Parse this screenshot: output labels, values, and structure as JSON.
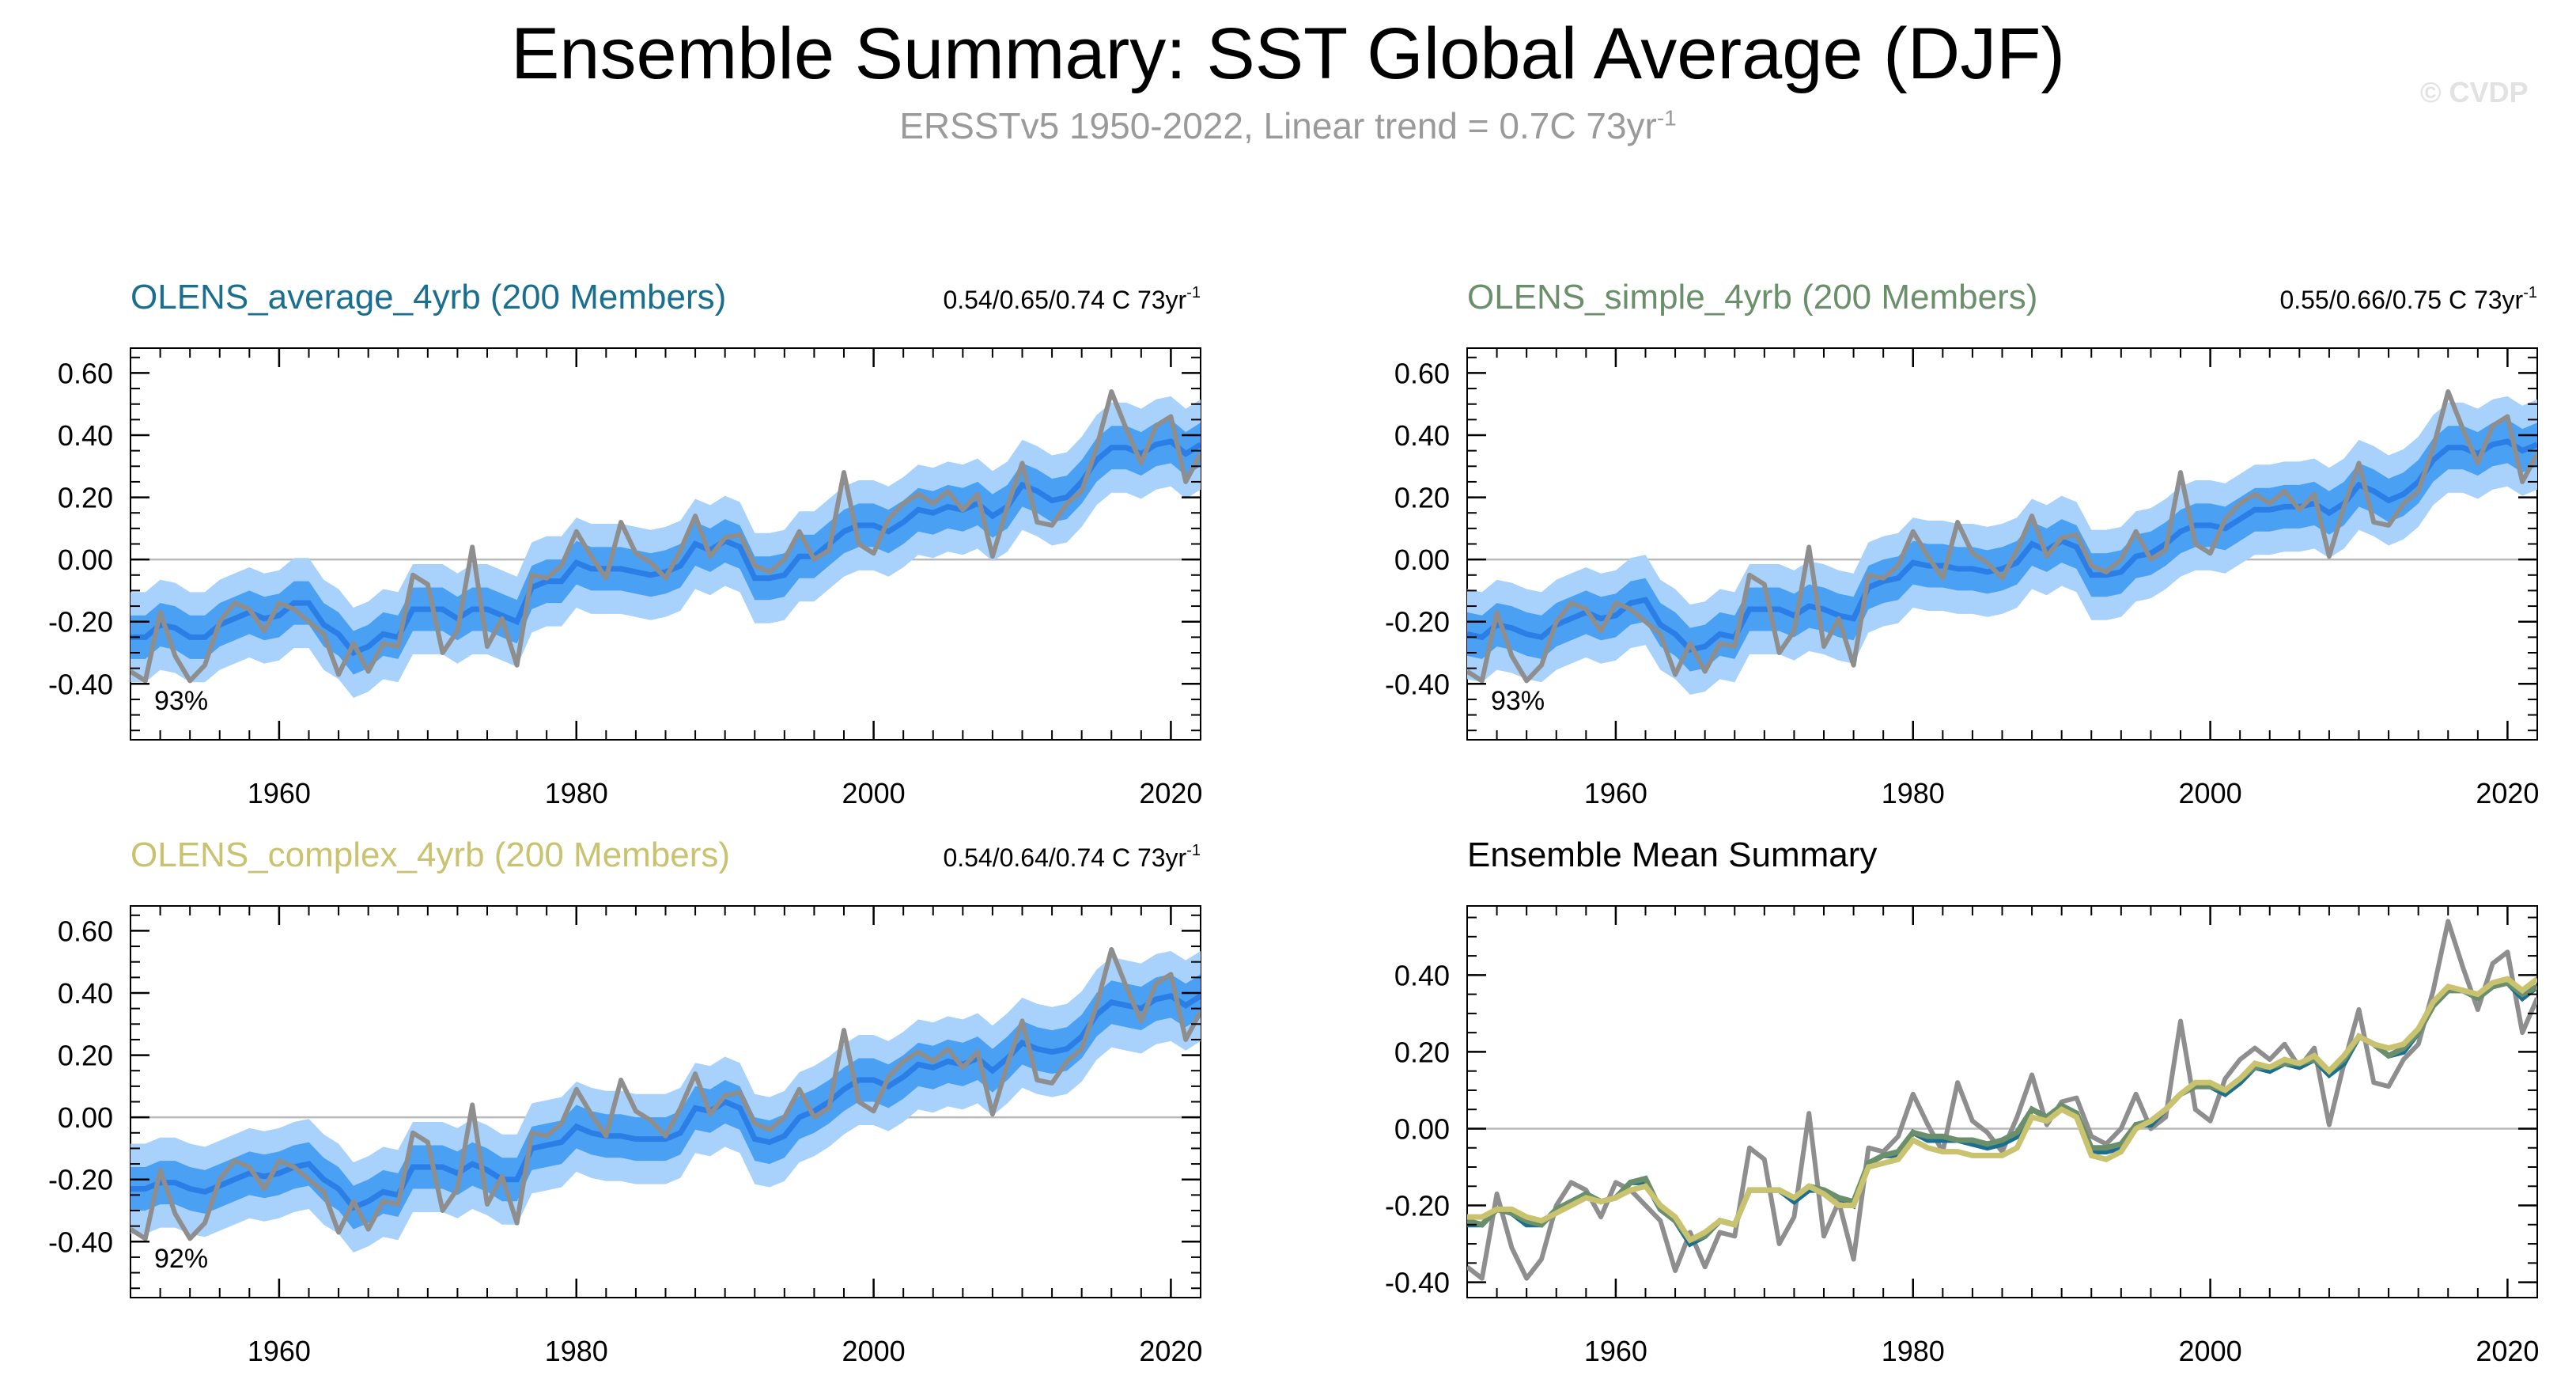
{
  "title": "Ensemble Summary: SST Global Average (DJF)",
  "subtitle": {
    "text": "ERSSTv5 1950-2022, Linear trend = 0.7C 73yr",
    "sup": "-1"
  },
  "watermark": "© CVDP",
  "colors": {
    "average": "#1a6e8f",
    "simple": "#6a8f6a",
    "complex": "#c9c36f",
    "outer_band": "#a8d2fb",
    "inner_band": "#4aa0f2",
    "ens_mean_line": "#2a7ee6",
    "obs": "#8e8e8e",
    "zero": "#b9b9b9"
  },
  "chart_data": [
    {
      "type": "area",
      "title": "OLENS_average_4yrb (200 Members)",
      "title_color": "#1a6e8f",
      "trend_text": "0.54/0.65/0.74 C 73yr",
      "trend_sup": "-1",
      "percent_label": "93%",
      "xlim": [
        1950,
        2022
      ],
      "ylim": [
        -0.58,
        0.68
      ],
      "xticks": [
        1960,
        1980,
        2000,
        2020
      ],
      "yticks": [
        -0.4,
        -0.2,
        0.0,
        0.2,
        0.4,
        0.6
      ],
      "ytick_labels": [
        "-0.40",
        "-0.20",
        "0.00",
        "0.20",
        "0.40",
        "0.60"
      ],
      "ens_offset": 0.0
    },
    {
      "type": "area",
      "title": "OLENS_simple_4yrb (200 Members)",
      "title_color": "#6a8f6a",
      "trend_text": "0.55/0.66/0.75 C 73yr",
      "trend_sup": "-1",
      "percent_label": "93%",
      "xlim": [
        1950,
        2022
      ],
      "ylim": [
        -0.58,
        0.68
      ],
      "xticks": [
        1960,
        1980,
        2000,
        2020
      ],
      "yticks": [
        -0.4,
        -0.2,
        0.0,
        0.2,
        0.4,
        0.6
      ],
      "ytick_labels": [
        "-0.40",
        "-0.20",
        "0.00",
        "0.20",
        "0.40",
        "0.60"
      ],
      "ens_offset": 0.005
    },
    {
      "type": "area",
      "title": "OLENS_complex_4yrb (200 Members)",
      "title_color": "#c9c36f",
      "trend_text": "0.54/0.64/0.74 C 73yr",
      "trend_sup": "-1",
      "percent_label": "92%",
      "xlim": [
        1950,
        2022
      ],
      "ylim": [
        -0.58,
        0.68
      ],
      "xticks": [
        1960,
        1980,
        2000,
        2020
      ],
      "yticks": [
        -0.4,
        -0.2,
        0.0,
        0.2,
        0.4,
        0.6
      ],
      "ytick_labels": [
        "-0.40",
        "-0.20",
        "0.00",
        "0.20",
        "0.40",
        "0.60"
      ],
      "ens_offset": 0.01
    },
    {
      "type": "line",
      "title": "Ensemble Mean Summary",
      "title_color": "#000000",
      "xlim": [
        1950,
        2022
      ],
      "ylim": [
        -0.44,
        0.58
      ],
      "xticks": [
        1960,
        1980,
        2000,
        2020
      ],
      "yticks": [
        -0.4,
        -0.2,
        0.0,
        0.2,
        0.4
      ],
      "ytick_labels": [
        "-0.40",
        "-0.20",
        "0.00",
        "0.20",
        "0.40"
      ]
    }
  ],
  "series_data": {
    "years": [
      1950,
      1951,
      1952,
      1953,
      1954,
      1955,
      1956,
      1957,
      1958,
      1959,
      1960,
      1961,
      1962,
      1963,
      1964,
      1965,
      1966,
      1967,
      1968,
      1969,
      1970,
      1971,
      1972,
      1973,
      1974,
      1975,
      1976,
      1977,
      1978,
      1979,
      1980,
      1981,
      1982,
      1983,
      1984,
      1985,
      1986,
      1987,
      1988,
      1989,
      1990,
      1991,
      1992,
      1993,
      1994,
      1995,
      1996,
      1997,
      1998,
      1999,
      2000,
      2001,
      2002,
      2003,
      2004,
      2005,
      2006,
      2007,
      2008,
      2009,
      2010,
      2011,
      2012,
      2013,
      2014,
      2015,
      2016,
      2017,
      2018,
      2019,
      2020,
      2021,
      2022
    ],
    "observed": [
      -0.36,
      -0.39,
      -0.17,
      -0.31,
      -0.39,
      -0.34,
      -0.2,
      -0.14,
      -0.16,
      -0.23,
      -0.14,
      -0.16,
      -0.2,
      -0.24,
      -0.37,
      -0.27,
      -0.36,
      -0.27,
      -0.28,
      -0.05,
      -0.08,
      -0.3,
      -0.23,
      0.04,
      -0.28,
      -0.19,
      -0.34,
      -0.05,
      -0.06,
      -0.02,
      0.09,
      0.01,
      -0.06,
      0.12,
      0.02,
      -0.01,
      -0.06,
      0.03,
      0.14,
      0.01,
      0.07,
      0.08,
      -0.02,
      -0.04,
      0.0,
      0.09,
      0.0,
      0.03,
      0.28,
      0.05,
      0.02,
      0.13,
      0.18,
      0.21,
      0.18,
      0.22,
      0.16,
      0.21,
      0.01,
      0.17,
      0.31,
      0.12,
      0.11,
      0.18,
      0.22,
      0.36,
      0.54,
      0.42,
      0.31,
      0.43,
      0.46,
      0.25,
      0.34
    ],
    "ens_average": [
      -0.25,
      -0.25,
      -0.21,
      -0.22,
      -0.25,
      -0.25,
      -0.21,
      -0.19,
      -0.17,
      -0.19,
      -0.18,
      -0.14,
      -0.14,
      -0.21,
      -0.24,
      -0.3,
      -0.28,
      -0.24,
      -0.25,
      -0.16,
      -0.16,
      -0.16,
      -0.19,
      -0.16,
      -0.16,
      -0.18,
      -0.2,
      -0.09,
      -0.07,
      -0.07,
      -0.01,
      -0.03,
      -0.03,
      -0.03,
      -0.04,
      -0.05,
      -0.04,
      -0.02,
      0.05,
      0.03,
      0.06,
      0.04,
      -0.06,
      -0.06,
      -0.05,
      0.01,
      0.01,
      0.05,
      0.09,
      0.11,
      0.11,
      0.09,
      0.12,
      0.16,
      0.15,
      0.17,
      0.16,
      0.18,
      0.14,
      0.17,
      0.24,
      0.22,
      0.19,
      0.2,
      0.25,
      0.32,
      0.36,
      0.36,
      0.34,
      0.37,
      0.38,
      0.34,
      0.37
    ],
    "ens_simple": [
      -0.24,
      -0.25,
      -0.21,
      -0.22,
      -0.24,
      -0.25,
      -0.21,
      -0.19,
      -0.17,
      -0.19,
      -0.18,
      -0.14,
      -0.13,
      -0.21,
      -0.24,
      -0.29,
      -0.28,
      -0.24,
      -0.25,
      -0.16,
      -0.16,
      -0.16,
      -0.18,
      -0.15,
      -0.16,
      -0.18,
      -0.19,
      -0.09,
      -0.07,
      -0.06,
      -0.01,
      -0.02,
      -0.02,
      -0.03,
      -0.03,
      -0.04,
      -0.03,
      -0.01,
      0.05,
      0.03,
      0.06,
      0.04,
      -0.05,
      -0.05,
      -0.04,
      0.01,
      0.02,
      0.05,
      0.09,
      0.11,
      0.11,
      0.1,
      0.13,
      0.16,
      0.16,
      0.17,
      0.17,
      0.18,
      0.15,
      0.18,
      0.24,
      0.22,
      0.19,
      0.21,
      0.25,
      0.32,
      0.36,
      0.36,
      0.34,
      0.37,
      0.38,
      0.35,
      0.37
    ],
    "ens_complex": [
      -0.23,
      -0.23,
      -0.21,
      -0.21,
      -0.23,
      -0.24,
      -0.22,
      -0.2,
      -0.18,
      -0.19,
      -0.18,
      -0.16,
      -0.15,
      -0.2,
      -0.23,
      -0.29,
      -0.27,
      -0.24,
      -0.25,
      -0.16,
      -0.16,
      -0.16,
      -0.18,
      -0.15,
      -0.17,
      -0.2,
      -0.2,
      -0.1,
      -0.09,
      -0.08,
      -0.03,
      -0.05,
      -0.06,
      -0.06,
      -0.07,
      -0.07,
      -0.07,
      -0.05,
      0.03,
      0.02,
      0.05,
      0.03,
      -0.07,
      -0.08,
      -0.06,
      0.0,
      0.02,
      0.05,
      0.09,
      0.12,
      0.12,
      0.1,
      0.13,
      0.17,
      0.16,
      0.18,
      0.17,
      0.19,
      0.15,
      0.19,
      0.24,
      0.22,
      0.21,
      0.22,
      0.26,
      0.33,
      0.37,
      0.36,
      0.35,
      0.38,
      0.39,
      0.36,
      0.39
    ]
  }
}
